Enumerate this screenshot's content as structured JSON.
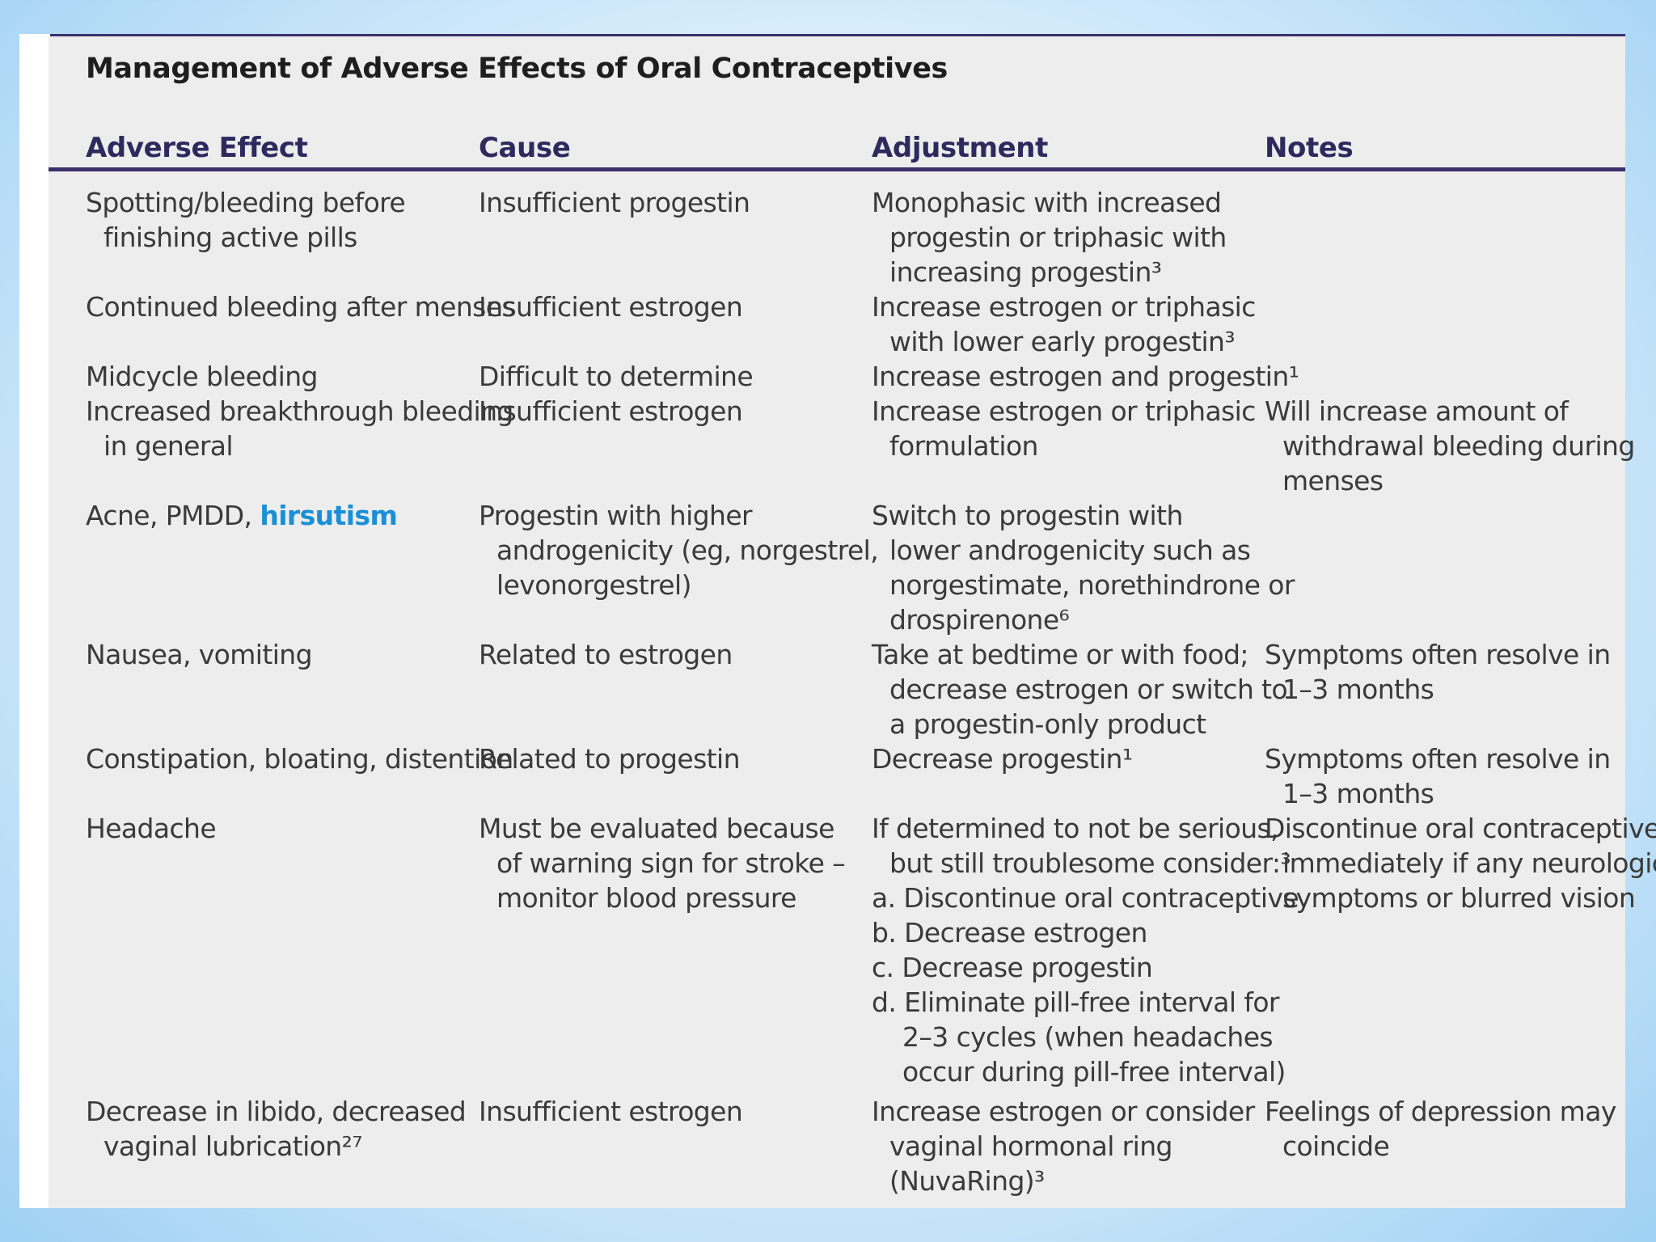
{
  "title": "Management of Adverse Effects of Oral Contraceptives",
  "columns": [
    "Adverse Effect",
    "Cause",
    "Adjustment",
    "Notes"
  ],
  "rows": [
    {
      "effect": [
        "Spotting/bleeding before",
        "finishing active pills"
      ],
      "cause": [
        "Insufficient progestin"
      ],
      "adjustment": [
        "Monophasic with increased",
        "progestin or triphasic with",
        "increasing progestin³"
      ],
      "notes": []
    },
    {
      "effect": [
        "Continued bleeding after menses"
      ],
      "cause": [
        "Insufficient estrogen"
      ],
      "adjustment": [
        "Increase estrogen or triphasic",
        "with lower early progestin³"
      ],
      "notes": []
    },
    {
      "effect": [
        "Midcycle bleeding"
      ],
      "cause": [
        "Difficult to determine"
      ],
      "adjustment": [
        "Increase estrogen and progestin¹"
      ],
      "notes": []
    },
    {
      "effect": [
        "Increased breakthrough bleeding",
        "in general"
      ],
      "cause": [
        "Insufficient estrogen"
      ],
      "adjustment": [
        "Increase estrogen or triphasic",
        "formulation"
      ],
      "notes": [
        "Will increase amount of",
        "withdrawal bleeding during",
        "menses"
      ]
    },
    {
      "effect_prefix": "Acne, PMDD, ",
      "effect_link": "hirsutism",
      "cause": [
        "Progestin with higher",
        "androgenicity (eg, norgestrel,",
        "levonorgestrel)"
      ],
      "adjustment": [
        "Switch to progestin with",
        "lower androgenicity such as",
        "norgestimate, norethindrone or",
        "drospirenone⁶"
      ],
      "notes": []
    },
    {
      "effect": [
        "Nausea, vomiting"
      ],
      "cause": [
        "Related to estrogen"
      ],
      "adjustment": [
        "Take at bedtime or with food;",
        "decrease estrogen or switch to",
        "a progestin-only product"
      ],
      "notes": [
        "Symptoms often resolve in",
        "1–3 months"
      ]
    },
    {
      "effect": [
        "Constipation, bloating, distention"
      ],
      "cause": [
        "Related to progestin"
      ],
      "adjustment": [
        "Decrease progestin¹"
      ],
      "notes": [
        "Symptoms often resolve in",
        "1–3 months"
      ]
    },
    {
      "effect": [
        "Headache"
      ],
      "cause": [
        "Must be evaluated because",
        "of warning sign for stroke –",
        "monitor blood pressure"
      ],
      "adjustment": [
        "If determined to not be serious,",
        "but still troublesome consider:³",
        "a.  Discontinue oral contraceptive",
        "b.  Decrease estrogen",
        "c.  Decrease progestin",
        "d.  Eliminate pill-free interval for",
        "2–3 cycles (when headaches",
        "occur during pill-free interval)"
      ],
      "notes": [
        "Discontinue oral contraceptive",
        "immediately if any neurologic",
        "symptoms or blurred vision"
      ]
    },
    {
      "effect": [
        "Decrease in libido, decreased",
        "vaginal lubrication²⁷"
      ],
      "cause": [
        "Insufficient estrogen"
      ],
      "adjustment": [
        "Increase estrogen or consider",
        "vaginal hormonal ring",
        "(NuvaRing)³"
      ],
      "notes": [
        "Feelings of depression may",
        "coincide"
      ]
    }
  ]
}
